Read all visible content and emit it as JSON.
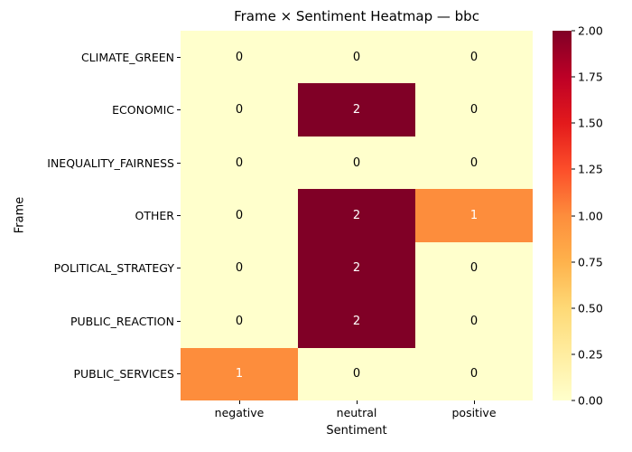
{
  "chart_data": {
    "type": "heatmap",
    "title": "Frame × Sentiment Heatmap — bbc",
    "xlabel": "Sentiment",
    "ylabel": "Frame",
    "x_categories": [
      "negative",
      "neutral",
      "positive"
    ],
    "y_categories": [
      "CLIMATE_GREEN",
      "ECONOMIC",
      "INEQUALITY_FAIRNESS",
      "OTHER",
      "POLITICAL_STRATEGY",
      "PUBLIC_REACTION",
      "PUBLIC_SERVICES"
    ],
    "matrix": [
      [
        0,
        0,
        0
      ],
      [
        0,
        2,
        0
      ],
      [
        0,
        0,
        0
      ],
      [
        0,
        2,
        1
      ],
      [
        0,
        2,
        0
      ],
      [
        0,
        2,
        0
      ],
      [
        1,
        0,
        0
      ]
    ],
    "value_colors": {
      "0": "#ffffcc",
      "1": "#fd8d3c",
      "2": "#800026"
    },
    "value_text_colors": {
      "0": "#000000",
      "1": "#ffffff",
      "2": "#ffffff"
    },
    "colorbar": {
      "min": 0,
      "max": 2,
      "ticks": [
        "0.00",
        "0.25",
        "0.50",
        "0.75",
        "1.00",
        "1.25",
        "1.50",
        "1.75",
        "2.00"
      ],
      "gradient_bottom_to_top": [
        "#ffffcc",
        "#ffeda0",
        "#fed976",
        "#feb24c",
        "#fd8d3c",
        "#fc4e2a",
        "#e31a1c",
        "#bd0026",
        "#800026"
      ]
    },
    "grid": false,
    "legend_position": "colorbar-right"
  }
}
